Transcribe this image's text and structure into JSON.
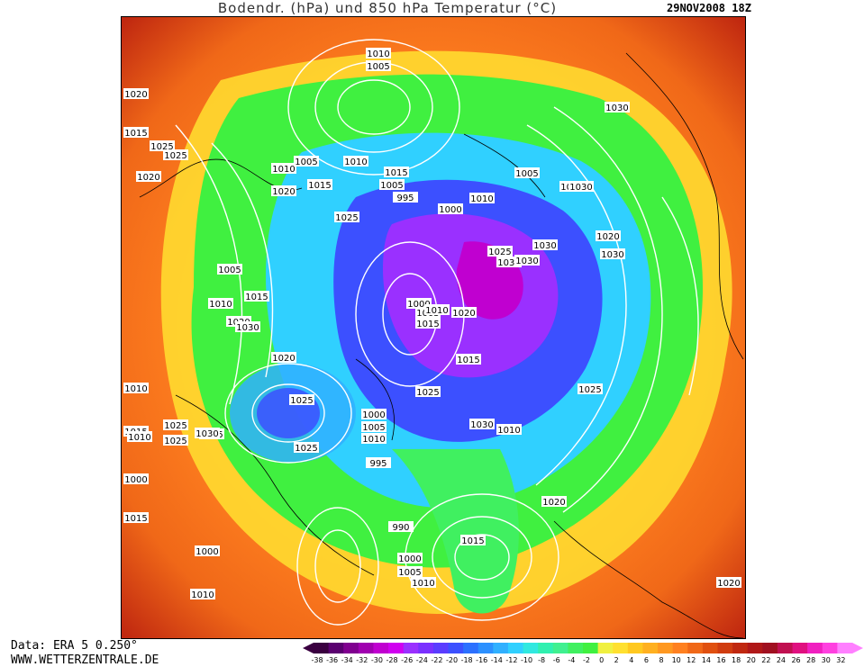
{
  "header": {
    "title": "Bodendr. (hPa) und 850 hPa Temperatur (°C)",
    "date": "29NOV2008 18Z"
  },
  "footer": {
    "data_source": "Data: ERA 5 0.250°",
    "website": "WWW.WETTERZENTRALE.DE"
  },
  "legend": {
    "labels": [
      "-38",
      "-36",
      "-34",
      "-32",
      "-30",
      "-28",
      "-26",
      "-24",
      "-22",
      "-20",
      "-18",
      "-16",
      "-14",
      "-12",
      "-10",
      "-8",
      "-6",
      "-4",
      "-2",
      "0",
      "2",
      "4",
      "6",
      "8",
      "10",
      "12",
      "14",
      "16",
      "18",
      "20",
      "22",
      "24",
      "26",
      "28",
      "30",
      "32"
    ],
    "colors": [
      "#3a0040",
      "#5a0070",
      "#800090",
      "#a000b0",
      "#c000d0",
      "#d000f0",
      "#9a30ff",
      "#7a30ff",
      "#5a3cff",
      "#3c50ff",
      "#2c70ff",
      "#2c90ff",
      "#30b0ff",
      "#30d0ff",
      "#30e8e0",
      "#30f0b0",
      "#40f090",
      "#40f060",
      "#40f040",
      "#f0f040",
      "#ffe030",
      "#ffc820",
      "#ffb020",
      "#ff9820",
      "#ff8020",
      "#f06818",
      "#e05010",
      "#d03c10",
      "#c02810",
      "#b01818",
      "#a01020",
      "#c01050",
      "#e01080",
      "#f020c0",
      "#ff40e0",
      "#ff80ff"
    ]
  },
  "map": {
    "isobar_labels": [
      {
        "text": "1010"
      },
      {
        "text": "1005"
      },
      {
        "text": "1020"
      },
      {
        "text": "1015"
      },
      {
        "text": "1025"
      },
      {
        "text": "1020"
      },
      {
        "text": "1025"
      },
      {
        "text": "1010"
      },
      {
        "text": "1005"
      },
      {
        "text": "1020"
      },
      {
        "text": "1015"
      },
      {
        "text": "1010"
      },
      {
        "text": "1015"
      },
      {
        "text": "1005"
      },
      {
        "text": "995"
      },
      {
        "text": "1000"
      },
      {
        "text": "1010"
      },
      {
        "text": "1025"
      },
      {
        "text": "1030"
      },
      {
        "text": "1030"
      },
      {
        "text": "1020"
      },
      {
        "text": "1025"
      },
      {
        "text": "1035"
      },
      {
        "text": "1030"
      },
      {
        "text": "1030"
      },
      {
        "text": "1020"
      },
      {
        "text": "1000"
      },
      {
        "text": "1005"
      },
      {
        "text": "1010"
      },
      {
        "text": "1015"
      },
      {
        "text": "1005"
      },
      {
        "text": "1010"
      },
      {
        "text": "1015"
      },
      {
        "text": "1020"
      },
      {
        "text": "1030"
      },
      {
        "text": "1025"
      },
      {
        "text": "1010"
      },
      {
        "text": "1015"
      },
      {
        "text": "1020"
      },
      {
        "text": "1025"
      },
      {
        "text": "1015"
      },
      {
        "text": "1030"
      },
      {
        "text": "1010"
      },
      {
        "text": "1000"
      },
      {
        "text": "1005"
      },
      {
        "text": "1010"
      },
      {
        "text": "1000"
      },
      {
        "text": "1025"
      },
      {
        "text": "995"
      },
      {
        "text": "1020"
      },
      {
        "text": "1030"
      },
      {
        "text": "1025"
      },
      {
        "text": "1030"
      },
      {
        "text": "1020"
      },
      {
        "text": "990"
      },
      {
        "text": "1015"
      },
      {
        "text": "1000"
      },
      {
        "text": "1005"
      },
      {
        "text": "1010"
      },
      {
        "text": "1015"
      },
      {
        "text": "1000"
      },
      {
        "text": "1010"
      },
      {
        "text": "1015"
      },
      {
        "text": "1025"
      },
      {
        "text": "1010"
      },
      {
        "text": "1025"
      },
      {
        "text": "1030"
      },
      {
        "text": "1005"
      }
    ]
  }
}
